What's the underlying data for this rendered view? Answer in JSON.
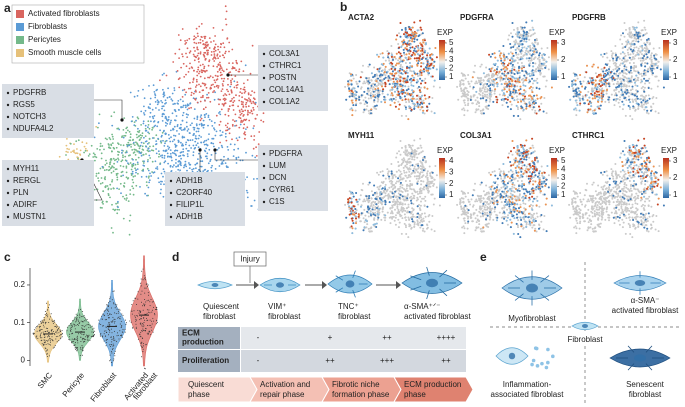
{
  "panels": {
    "a": {
      "label": "a",
      "legend": [
        {
          "name": "Activated fibroblasts",
          "color": "#d9655f"
        },
        {
          "name": "Fibroblasts",
          "color": "#5b9bd5"
        },
        {
          "name": "Pericytes",
          "color": "#74b98a"
        },
        {
          "name": "Smooth muscle cells",
          "color": "#e6c17a"
        }
      ],
      "gene_boxes": [
        [
          "PDGFRB",
          "RGS5",
          "NOTCH3",
          "NDUFA4L2"
        ],
        [
          "MYH11",
          "RERGL",
          "PLN",
          "ADIRF",
          "MUSTN1"
        ],
        [
          "COL3A1",
          "CTHRC1",
          "POSTN",
          "COL14A1",
          "COL1A2"
        ],
        [
          "PDGFRA",
          "LUM",
          "DCN",
          "CYR61",
          "C1S"
        ],
        [
          "ADH1B",
          "C2ORF40",
          "FILIP1L",
          "ADH1B"
        ]
      ]
    },
    "b": {
      "label": "b",
      "plots": [
        {
          "gene": "ACTA2",
          "colorbar_title": "EXP",
          "ticks": [
            5,
            4,
            3,
            2,
            1
          ]
        },
        {
          "gene": "PDGFRA",
          "colorbar_title": "EXP",
          "ticks": [
            3,
            2,
            1
          ]
        },
        {
          "gene": "PDGFRB",
          "colorbar_title": "EXP",
          "ticks": [
            3,
            2,
            1
          ]
        },
        {
          "gene": "MYH11",
          "colorbar_title": "EXP",
          "ticks": [
            4,
            3,
            2,
            1
          ]
        },
        {
          "gene": "COL3A1",
          "colorbar_title": "EXP",
          "ticks": [
            5,
            4,
            3,
            2,
            1
          ]
        },
        {
          "gene": "CTHRC1",
          "colorbar_title": "EXP",
          "ticks": [
            3,
            2,
            1
          ]
        }
      ]
    },
    "c": {
      "label": "c",
      "ylim": [
        -0.015,
        0.245
      ],
      "yticks": [
        0,
        0.1,
        0.2
      ],
      "categories": [
        [
          "SMC"
        ],
        [
          "Pericyte"
        ],
        [
          "Fibroblast"
        ],
        [
          "Activated",
          "fibroblast"
        ]
      ]
    },
    "d": {
      "label": "d",
      "injury": "Injury",
      "stages": [
        [
          "Quiescent",
          "fibroblast"
        ],
        [
          "VIM⁺",
          "fibroblast"
        ],
        [
          "TNC⁺",
          "fibroblast"
        ],
        [
          "α-SMA⁺ᐟ⁻",
          "activated fibroblast"
        ]
      ],
      "rows": [
        {
          "header": [
            "ECM",
            "production"
          ],
          "cells": [
            "-",
            "+",
            "++",
            "++++"
          ]
        },
        {
          "header": [
            "Proliferation"
          ],
          "cells": [
            "-",
            "++",
            "+++",
            "++"
          ]
        }
      ],
      "phases": [
        [
          "Quiescent",
          "phase"
        ],
        [
          "Activation and",
          "repair phase"
        ],
        [
          "Fibrotic niche",
          "formation phase"
        ],
        [
          "ECM production",
          "phase"
        ]
      ]
    },
    "e": {
      "label": "e",
      "cells": [
        [
          "Myofibroblast"
        ],
        [
          "α-SMA⁻",
          "activated fibroblast"
        ],
        [
          "Fibroblast"
        ],
        [
          "Inflammation-",
          "associated fibroblast"
        ],
        [
          "Senescent",
          "fibroblast"
        ]
      ]
    }
  }
}
